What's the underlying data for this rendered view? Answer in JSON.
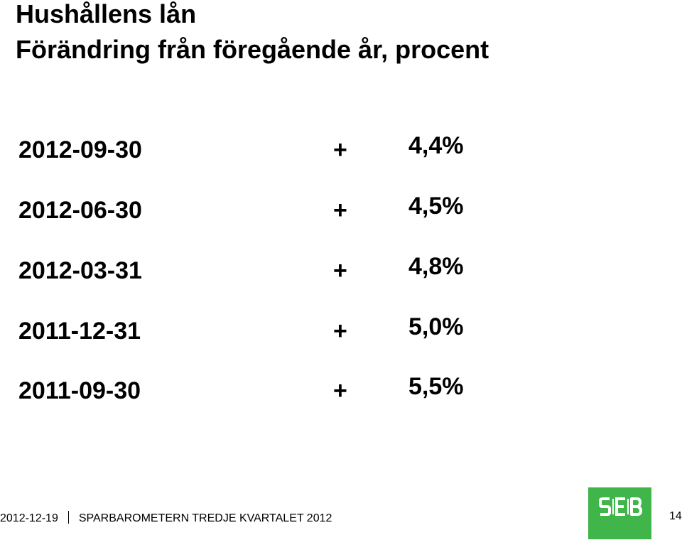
{
  "slide": {
    "title": "Hushållens lån",
    "subtitle": "Förändring från föregående år, procent"
  },
  "rows": [
    {
      "date": "2012-09-30",
      "sign": "+",
      "value": "4,4%"
    },
    {
      "date": "2012-06-30",
      "sign": "+",
      "value": "4,5%"
    },
    {
      "date": "2012-03-31",
      "sign": "+",
      "value": "4,8%"
    },
    {
      "date": "2011-12-31",
      "sign": "+",
      "value": "5,0%"
    },
    {
      "date": "2011-09-30",
      "sign": "+",
      "value": "5,5%"
    }
  ],
  "footer": {
    "date": "2012-12-19",
    "label": "SPARBAROMETERN TREDJE KVARTALET 2012",
    "page_number": "14"
  },
  "logo": {
    "text": "SEB",
    "color": "#3fb54a"
  }
}
